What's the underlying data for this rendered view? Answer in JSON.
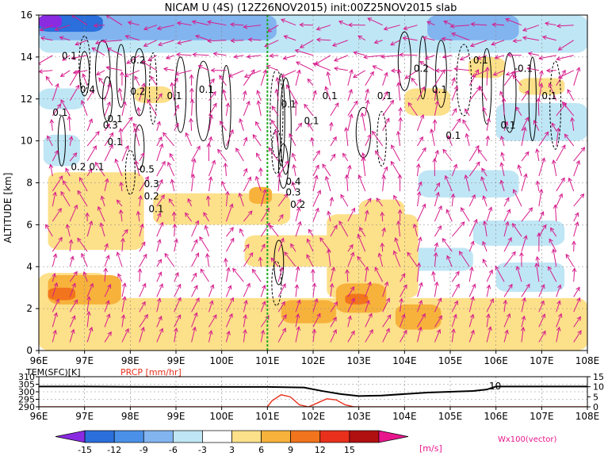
{
  "chart_data": [
    {
      "type": "heatmap",
      "title": "NICAM U (4S) (12Z26NOV2015) init:00Z25NOV2015 slab",
      "ylabel": "ALTITUDE [km]",
      "xlim": [
        96,
        108
      ],
      "ylim": [
        0,
        16
      ],
      "x_ticks": [
        "96E",
        "97E",
        "98E",
        "99E",
        "100E",
        "101E",
        "102E",
        "103E",
        "104E",
        "105E",
        "106E",
        "107E",
        "108E"
      ],
      "y_ticks": [
        "0",
        "2",
        "4",
        "6",
        "8",
        "10",
        "12",
        "14",
        "16"
      ],
      "grid": true,
      "marker_line_x": 101,
      "colorbar": {
        "levels": [
          "-15",
          "-12",
          "-9",
          "-6",
          "-3",
          "3",
          "6",
          "9",
          "12",
          "15"
        ],
        "unit": "[m/s]",
        "colors": [
          "#8a2be2",
          "#2a6fdc",
          "#4a90e8",
          "#82b4f0",
          "#bfe6f5",
          "#ffffff",
          "#fde08a",
          "#f7b23b",
          "#f2741c",
          "#e8301c",
          "#b01010",
          "#e8168c"
        ]
      },
      "contour_labels": [
        "0.1",
        "0.1",
        "0.2",
        "0.4",
        "0.3",
        "0.1",
        "0.2",
        "0.2",
        "0.1",
        "0.1",
        "0.1",
        "0.5",
        "0.3",
        "0.2",
        "0.1",
        "0.1",
        "0.1",
        "0.4",
        "0.3",
        "0.2",
        "0.1",
        "0.1",
        "0.1",
        "0.2",
        "0.1",
        "-0.1",
        "0.1",
        "0.1",
        "0.1",
        "0.1"
      ],
      "regions": [
        {
          "kind": "neg",
          "x": [
            96.0,
            108.0
          ],
          "y": [
            14.2,
            16.0
          ],
          "level": -3
        },
        {
          "kind": "neg",
          "x": [
            96.0,
            101.2
          ],
          "y": [
            14.8,
            16.0
          ],
          "level": -6
        },
        {
          "kind": "neg",
          "x": [
            96.0,
            97.4
          ],
          "y": [
            15.2,
            16.0
          ],
          "level": -12
        },
        {
          "kind": "neg",
          "x": [
            96.0,
            96.5
          ],
          "y": [
            15.4,
            16.0
          ],
          "level": -15
        },
        {
          "kind": "neg",
          "x": [
            104.5,
            106.5
          ],
          "y": [
            14.8,
            16.0
          ],
          "level": -6
        },
        {
          "kind": "neg",
          "x": [
            96.0,
            97.0
          ],
          "y": [
            11.5,
            12.5
          ],
          "level": -3
        },
        {
          "kind": "neg",
          "x": [
            96.1,
            96.9
          ],
          "y": [
            8.8,
            10.3
          ],
          "level": -3
        },
        {
          "kind": "neg",
          "x": [
            106.0,
            108.0
          ],
          "y": [
            10.0,
            11.8
          ],
          "level": -3
        },
        {
          "kind": "neg",
          "x": [
            104.3,
            106.5
          ],
          "y": [
            7.3,
            8.6
          ],
          "level": -3
        },
        {
          "kind": "neg",
          "x": [
            105.5,
            107.5
          ],
          "y": [
            5.0,
            6.2
          ],
          "level": -3
        },
        {
          "kind": "neg",
          "x": [
            106.0,
            107.5
          ],
          "y": [
            2.8,
            4.2
          ],
          "level": -3
        },
        {
          "kind": "neg",
          "x": [
            104.0,
            105.5
          ],
          "y": [
            3.8,
            4.9
          ],
          "level": -3
        },
        {
          "kind": "pos",
          "x": [
            96.0,
            108.0
          ],
          "y": [
            0.0,
            2.5
          ],
          "level": 3
        },
        {
          "kind": "pos",
          "x": [
            96.0,
            97.5
          ],
          "y": [
            2.0,
            3.7
          ],
          "level": 3
        },
        {
          "kind": "pos",
          "x": [
            96.2,
            98.3
          ],
          "y": [
            4.8,
            8.5
          ],
          "level": 3
        },
        {
          "kind": "pos",
          "x": [
            98.5,
            101.5
          ],
          "y": [
            6.0,
            7.5
          ],
          "level": 3
        },
        {
          "kind": "pos",
          "x": [
            102.3,
            104.3
          ],
          "y": [
            2.5,
            6.5
          ],
          "level": 3
        },
        {
          "kind": "pos",
          "x": [
            100.5,
            102.5
          ],
          "y": [
            4.0,
            5.5
          ],
          "level": 3
        },
        {
          "kind": "pos",
          "x": [
            103.0,
            104.0
          ],
          "y": [
            5.6,
            7.2
          ],
          "level": 3
        },
        {
          "kind": "pos",
          "x": [
            104.0,
            105.0
          ],
          "y": [
            11.2,
            12.5
          ],
          "level": 3
        },
        {
          "kind": "pos",
          "x": [
            106.5,
            107.5
          ],
          "y": [
            12.2,
            13.0
          ],
          "level": 3
        },
        {
          "kind": "pos",
          "x": [
            105.4,
            106.2
          ],
          "y": [
            13.0,
            14.0
          ],
          "level": 3
        },
        {
          "kind": "pos",
          "x": [
            98.1,
            98.9
          ],
          "y": [
            11.8,
            12.6
          ],
          "level": 3
        },
        {
          "kind": "pos",
          "x": [
            96.2,
            97.8
          ],
          "y": [
            2.2,
            3.6
          ],
          "level": 6
        },
        {
          "kind": "pos",
          "x": [
            102.5,
            103.6
          ],
          "y": [
            1.8,
            3.2
          ],
          "level": 6
        },
        {
          "kind": "pos",
          "x": [
            101.3,
            102.5
          ],
          "y": [
            1.3,
            2.4
          ],
          "level": 6
        },
        {
          "kind": "pos",
          "x": [
            103.8,
            104.8
          ],
          "y": [
            1.0,
            2.2
          ],
          "level": 6
        },
        {
          "kind": "pos",
          "x": [
            100.6,
            101.1
          ],
          "y": [
            7.0,
            7.8
          ],
          "level": 6
        },
        {
          "kind": "pos",
          "x": [
            96.2,
            96.8
          ],
          "y": [
            2.4,
            3.0
          ],
          "level": 9
        },
        {
          "kind": "pos",
          "x": [
            102.7,
            103.2
          ],
          "y": [
            2.2,
            2.7
          ],
          "level": 9
        }
      ]
    },
    {
      "type": "line",
      "ylabel_left": "TEM(SFC)[K]",
      "ylabel_right": "PRCP [mm/hr]",
      "xlim": [
        96,
        108
      ],
      "x_ticks": [
        "96E",
        "97E",
        "98E",
        "99E",
        "100E",
        "101E",
        "102E",
        "103E",
        "104E",
        "105E",
        "106E",
        "107E",
        "108E"
      ],
      "y_left_ticks": [
        "290",
        "295",
        "300",
        "305",
        "310"
      ],
      "y_right_ticks": [
        "0",
        "5",
        "10",
        "15"
      ],
      "y_left_lim": [
        290,
        310
      ],
      "y_right_lim": [
        0,
        15
      ],
      "series": [
        {
          "color": "#000000",
          "axis": "left",
          "x": [
            96,
            97,
            98,
            99,
            100,
            101,
            101.8,
            102.2,
            102.6,
            103,
            103.5,
            104,
            104.5,
            105,
            105.5,
            105.8,
            106,
            106.5,
            107,
            108
          ],
          "y": [
            303.5,
            303.5,
            303.3,
            303.2,
            303.2,
            303.2,
            302.8,
            300.5,
            298.5,
            297.2,
            297.5,
            298.5,
            299.5,
            300,
            300.5,
            301.5,
            303.5,
            303.5,
            303.5,
            303.5
          ]
        },
        {
          "color": "#e8301c",
          "axis": "right",
          "x": [
            96,
            101,
            101.1,
            101.3,
            101.5,
            101.7,
            101.9,
            102.1,
            102.3,
            102.5,
            102.7,
            102.9,
            103,
            108
          ],
          "y": [
            0,
            0,
            3,
            6,
            5,
            1,
            0,
            2,
            4,
            3.5,
            1,
            0,
            0,
            0
          ]
        }
      ],
      "annotation": "10"
    }
  ],
  "vector_label": "Wx100(vector)"
}
